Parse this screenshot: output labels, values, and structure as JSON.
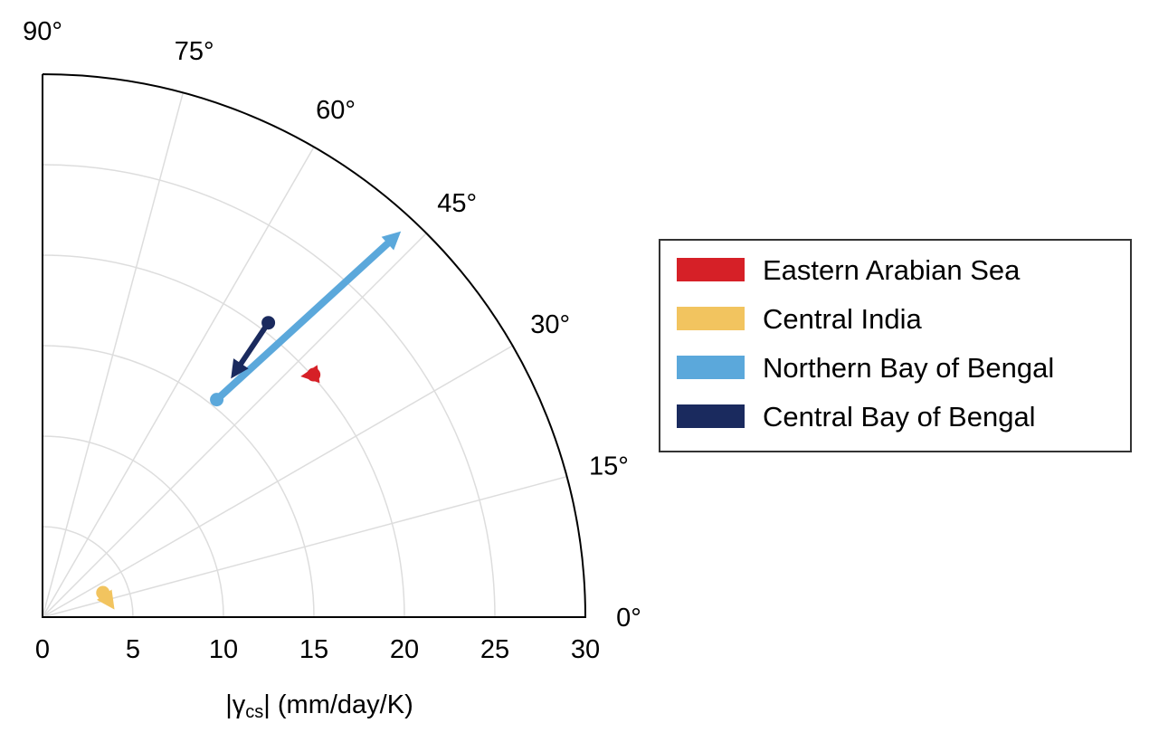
{
  "chart_data": {
    "type": "polar-quadrant-arrows",
    "rlim": [
      0,
      30
    ],
    "theta_range_deg": [
      0,
      90
    ],
    "r_ticks": [
      0,
      5,
      10,
      15,
      20,
      25,
      30
    ],
    "r_tick_labels": [
      "0",
      "5",
      "10",
      "15",
      "20",
      "25",
      "30"
    ],
    "theta_ticks_deg": [
      0,
      15,
      30,
      45,
      60,
      75,
      90
    ],
    "theta_tick_labels": [
      "0°",
      "15°",
      "30°",
      "45°",
      "60°",
      "75°",
      "90°"
    ],
    "xlabel": "|γcs| (mm/day/K)",
    "xlabel_parts": {
      "pre": "|γ",
      "sub": "cs",
      "post": "| (mm/day/K)"
    },
    "grid": true,
    "legend_position": "right",
    "series": [
      {
        "name": "Eastern Arabian Sea",
        "color": "#d62027",
        "start": {
          "r": 20.1,
          "theta_deg": 41.8
        },
        "end": {
          "r": 19.5,
          "theta_deg": 43.0
        },
        "line_width": 5
      },
      {
        "name": "Central India",
        "color": "#f2c45f",
        "start": {
          "r": 3.6,
          "theta_deg": 22.0
        },
        "end": {
          "r": 4.0,
          "theta_deg": 6.0
        },
        "line_width": 5
      },
      {
        "name": "Northern Bay of Bengal",
        "color": "#5ba8db",
        "start": {
          "r": 15.4,
          "theta_deg": 51.3
        },
        "end": {
          "r": 29.1,
          "theta_deg": 47.1
        },
        "line_width": 8
      },
      {
        "name": "Central Bay of Bengal",
        "color": "#1a2a5e",
        "start": {
          "r": 20.5,
          "theta_deg": 52.5
        },
        "end": {
          "r": 16.8,
          "theta_deg": 51.7
        },
        "line_width": 6
      }
    ]
  }
}
